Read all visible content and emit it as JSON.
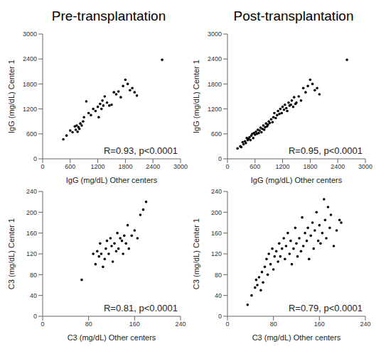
{
  "chart_data": [
    {
      "type": "scatter",
      "title": "Pre-transplantation",
      "x_label": "IgG (mg/dL) Other centers",
      "y_label": "IgG (mg/dL) Center 1",
      "annotation": "R=0.93, p<0.0001",
      "color": "#000000",
      "grid": false,
      "xlim": [
        0,
        3000
      ],
      "xticks": [
        0,
        600,
        1200,
        1800,
        2400,
        3000
      ],
      "ylim": [
        0,
        3000
      ],
      "yticks": [
        0,
        600,
        1200,
        1800,
        2400,
        3000
      ],
      "x": [
        450,
        520,
        600,
        650,
        700,
        720,
        740,
        760,
        780,
        800,
        820,
        850,
        880,
        900,
        950,
        1000,
        1050,
        1100,
        1150,
        1200,
        1220,
        1250,
        1280,
        1300,
        1320,
        1350,
        1400,
        1450,
        1500,
        1550,
        1600,
        1650,
        1700,
        1750,
        1800,
        1850,
        1900,
        1950,
        2000,
        2050,
        2600
      ],
      "values": [
        470,
        560,
        680,
        640,
        780,
        700,
        800,
        650,
        760,
        720,
        850,
        800,
        900,
        1000,
        1380,
        1100,
        1050,
        1200,
        1150,
        1250,
        1000,
        1320,
        1200,
        1400,
        1280,
        1500,
        1350,
        1280,
        1300,
        1600,
        1550,
        1620,
        1480,
        1750,
        1900,
        1800,
        1650,
        1700,
        1600,
        1520,
        2380
      ]
    },
    {
      "type": "scatter",
      "title": "Post-transplantation",
      "x_label": "IgG (mg/dL) Other centers",
      "y_label": "IgG (mg/dL) Center 1",
      "annotation": "R=0.95, p<0.0001",
      "color": "#000000",
      "grid": false,
      "xlim": [
        0,
        3000
      ],
      "xticks": [
        0,
        600,
        1200,
        1800,
        2400,
        3000
      ],
      "ylim": [
        0,
        3000
      ],
      "yticks": [
        0,
        600,
        1200,
        1800,
        2400,
        3000
      ],
      "x": [
        220,
        280,
        300,
        330,
        350,
        380,
        400,
        420,
        440,
        460,
        480,
        500,
        520,
        540,
        560,
        580,
        600,
        620,
        640,
        660,
        680,
        700,
        720,
        740,
        760,
        780,
        800,
        820,
        840,
        860,
        880,
        900,
        920,
        950,
        980,
        1000,
        1020,
        1050,
        1080,
        1100,
        1130,
        1150,
        1180,
        1200,
        1230,
        1250,
        1280,
        1300,
        1330,
        1350,
        1380,
        1400,
        1430,
        1450,
        1480,
        1500,
        1550,
        1600,
        1650,
        1700,
        1750,
        1800,
        1850,
        1900,
        1950,
        2000,
        2600
      ],
      "values": [
        250,
        300,
        280,
        400,
        350,
        420,
        380,
        500,
        450,
        480,
        520,
        450,
        560,
        600,
        500,
        620,
        580,
        650,
        600,
        700,
        620,
        680,
        750,
        640,
        720,
        800,
        700,
        760,
        850,
        780,
        820,
        900,
        860,
        950,
        880,
        1000,
        1100,
        980,
        1050,
        1150,
        1080,
        1200,
        1100,
        1250,
        1180,
        1300,
        1220,
        1150,
        1350,
        1280,
        1300,
        1400,
        1250,
        1480,
        1320,
        1350,
        1500,
        1400,
        1700,
        1600,
        1750,
        1900,
        1800,
        1650,
        1700,
        1550,
        2380
      ]
    },
    {
      "type": "scatter",
      "x_label": "C3 (mg/dL) Other centers",
      "y_label": "C3 (mg/dL) Center 1",
      "annotation": "R=0.81, p<0.0001",
      "color": "#000000",
      "grid": false,
      "xlim": [
        0,
        240
      ],
      "xticks": [
        0,
        80,
        160,
        240
      ],
      "ylim": [
        0,
        240
      ],
      "yticks": [
        0,
        40,
        80,
        120,
        160,
        200,
        240
      ],
      "x": [
        68,
        88,
        92,
        95,
        98,
        100,
        102,
        105,
        108,
        110,
        112,
        115,
        118,
        120,
        122,
        125,
        128,
        130,
        132,
        135,
        138,
        140,
        142,
        145,
        148,
        150,
        155,
        160,
        165,
        170,
        175,
        180
      ],
      "values": [
        70,
        120,
        100,
        125,
        115,
        140,
        120,
        95,
        110,
        130,
        145,
        120,
        150,
        135,
        105,
        140,
        125,
        160,
        130,
        150,
        145,
        120,
        155,
        140,
        175,
        130,
        155,
        165,
        150,
        195,
        205,
        220
      ]
    },
    {
      "type": "scatter",
      "x_label": "C3 (mg/dL) Other centers",
      "y_label": "C3 (mg/dL) Center 1",
      "annotation": "R=0.79, p<0.0001",
      "color": "#000000",
      "grid": false,
      "xlim": [
        0,
        240
      ],
      "xticks": [
        0,
        80,
        160,
        240
      ],
      "ylim": [
        0,
        240
      ],
      "yticks": [
        0,
        40,
        80,
        120,
        160,
        200,
        240
      ],
      "x": [
        35,
        42,
        48,
        50,
        52,
        55,
        58,
        60,
        62,
        65,
        68,
        70,
        72,
        75,
        78,
        80,
        82,
        85,
        88,
        90,
        92,
        95,
        98,
        100,
        102,
        105,
        108,
        110,
        112,
        115,
        118,
        120,
        122,
        125,
        128,
        130,
        132,
        135,
        138,
        140,
        142,
        145,
        148,
        150,
        152,
        155,
        158,
        160,
        162,
        165,
        168,
        170,
        172,
        175,
        178,
        180,
        185,
        190,
        195,
        198
      ],
      "values": [
        22,
        40,
        55,
        70,
        60,
        75,
        50,
        85,
        65,
        95,
        110,
        80,
        120,
        100,
        130,
        90,
        115,
        125,
        105,
        140,
        115,
        130,
        150,
        110,
        135,
        160,
        120,
        145,
        100,
        130,
        170,
        140,
        115,
        150,
        125,
        190,
        135,
        160,
        145,
        170,
        110,
        155,
        180,
        130,
        165,
        200,
        145,
        175,
        140,
        160,
        225,
        185,
        150,
        210,
        170,
        195,
        135,
        165,
        185,
        180
      ]
    }
  ]
}
